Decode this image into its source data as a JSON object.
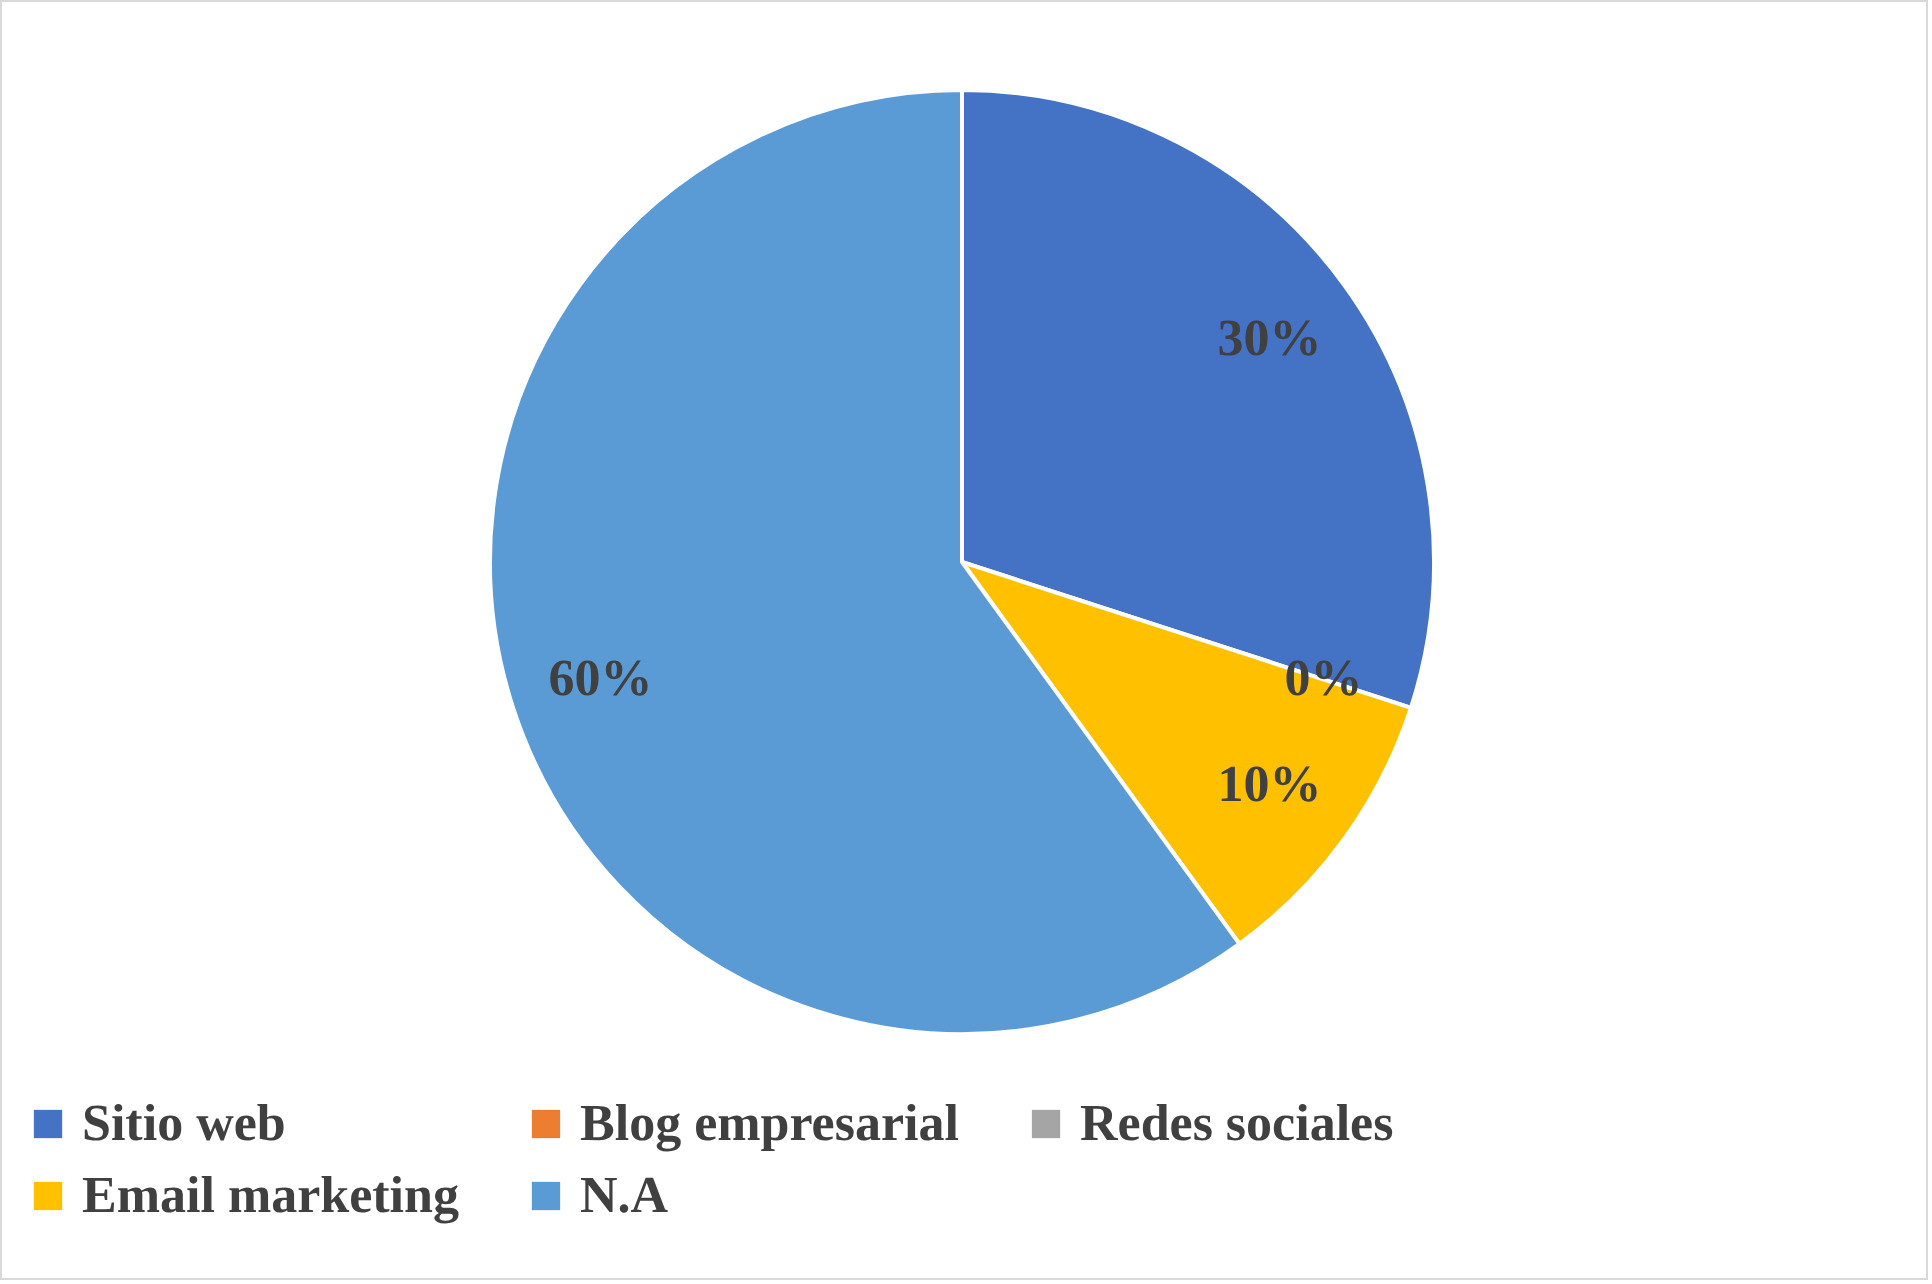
{
  "chart_data": {
    "type": "pie",
    "categories": [
      "Sitio web",
      "Blog empresarial",
      "Redes sociales",
      "Email marketing",
      "N.A"
    ],
    "values": [
      30,
      0,
      0,
      10,
      60
    ],
    "colors": [
      "#4472c4",
      "#ed7d31",
      "#a5a5a5",
      "#ffc000",
      "#5b9bd5"
    ],
    "value_labels": [
      "30%",
      "0%",
      null,
      "10%",
      "60%"
    ],
    "legend": "bottom"
  }
}
